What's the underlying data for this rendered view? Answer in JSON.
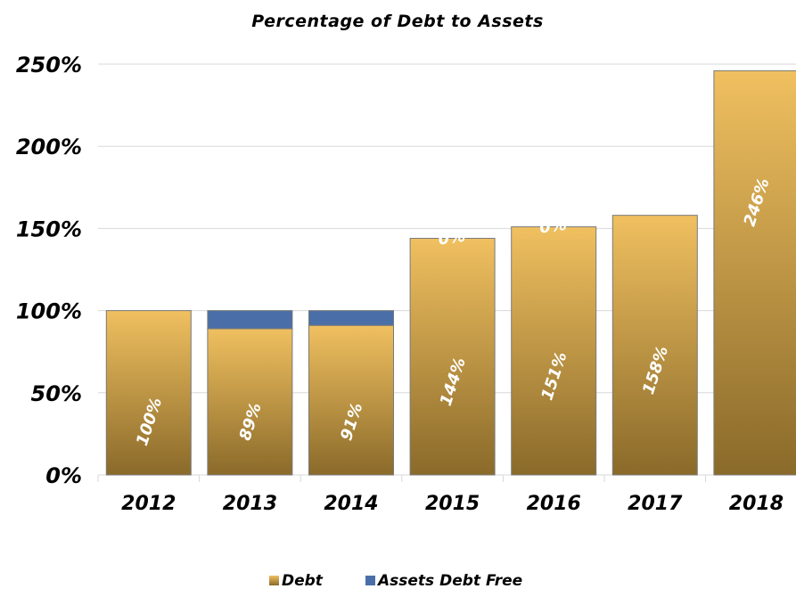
{
  "chart_data": {
    "type": "bar",
    "stacked": true,
    "title": "Percentage of Debt to Assets",
    "categories": [
      "2012",
      "2013",
      "2014",
      "2015",
      "2016",
      "2017",
      "2018"
    ],
    "series": [
      {
        "name": "Debt",
        "values": [
          100,
          89,
          91,
          144,
          151,
          158,
          246
        ],
        "labels": [
          "100%",
          "89%",
          "91%",
          "144%",
          "151%",
          "158%",
          "246%"
        ],
        "color": "#d4a84b",
        "gradient_top": "#f0c060",
        "gradient_bottom": "#8a6a2a"
      },
      {
        "name": "Assets Debt Free",
        "values": [
          0,
          11,
          9,
          0,
          0,
          0,
          0
        ],
        "labels": [
          "",
          "",
          "",
          "0%",
          "0%",
          "",
          ""
        ],
        "color": "#4a6fa8"
      }
    ],
    "yaxis": {
      "min": 0,
      "max": 250,
      "ticks": [
        0,
        50,
        100,
        150,
        200,
        250
      ],
      "tick_labels": [
        "0%",
        "50%",
        "100%",
        "150%",
        "200%",
        "250%"
      ]
    },
    "grid": true,
    "legend_position": "bottom"
  }
}
